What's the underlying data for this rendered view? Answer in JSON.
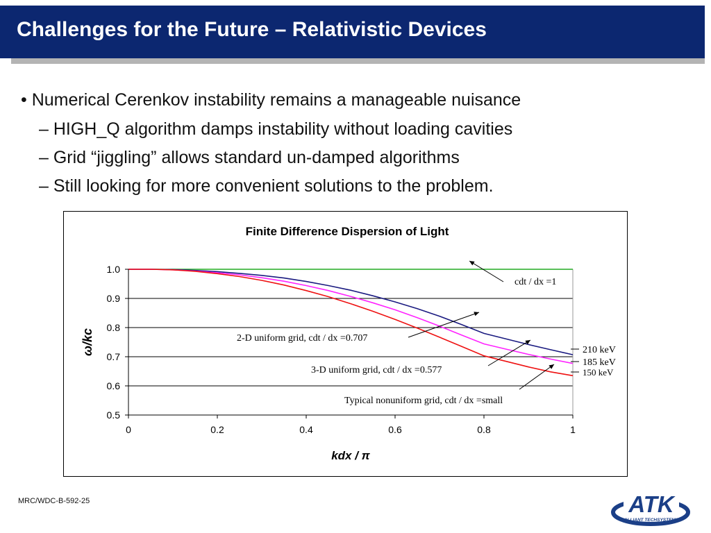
{
  "slide": {
    "title": "Challenges for the Future – Relativistic Devices",
    "bullets": [
      "• Numerical Cerenkov instability remains a manageable nuisance",
      "– HIGH_Q algorithm damps instability without loading cavities",
      "– Grid “jiggling” allows standard un-damped algorithms",
      "– Still looking for more convenient solutions to the problem."
    ],
    "footer_code": "MRC/WDC-B-592-25",
    "logo_text": "ATK",
    "logo_subtext": "ALLIANT TECHSYSTEMS"
  },
  "colors": {
    "title_bar": "#0c2770",
    "logo": "#1b3f87"
  },
  "chart_data": {
    "type": "line",
    "title": "Finite Difference Dispersion of Light",
    "xlabel": "kdx / π",
    "ylabel": "ω/kc",
    "xlim": [
      0,
      1
    ],
    "ylim": [
      0.5,
      1.0
    ],
    "x_ticks": [
      "0",
      "0.2",
      "0.4",
      "0.6",
      "0.8",
      "1"
    ],
    "y_ticks": [
      "0.5",
      "0.6",
      "0.7",
      "0.8",
      "0.9",
      "1.0"
    ],
    "grid": "horizontal",
    "x": [
      0,
      0.05,
      0.1,
      0.15,
      0.2,
      0.25,
      0.3,
      0.35,
      0.4,
      0.45,
      0.5,
      0.55,
      0.6,
      0.65,
      0.7,
      0.75,
      0.8,
      0.85,
      0.9,
      0.95,
      1
    ],
    "series": [
      {
        "color": "#22aa22",
        "values": [
          1,
          1,
          1,
          1,
          1,
          1,
          1,
          1,
          1,
          1,
          1,
          1,
          1,
          1,
          1,
          1,
          1,
          1,
          1,
          1,
          1
        ]
      },
      {
        "color": "#1a1a80",
        "values": [
          1.0,
          1.0,
          0.999,
          0.996,
          0.992,
          0.986,
          0.979,
          0.97,
          0.958,
          0.944,
          0.928,
          0.909,
          0.888,
          0.865,
          0.839,
          0.81,
          0.78,
          0.761,
          0.742,
          0.724,
          0.707
        ]
      },
      {
        "color": "#ff22ff",
        "values": [
          1.0,
          1.0,
          0.998,
          0.994,
          0.988,
          0.981,
          0.971,
          0.959,
          0.944,
          0.927,
          0.907,
          0.885,
          0.861,
          0.834,
          0.805,
          0.774,
          0.744,
          0.726,
          0.708,
          0.692,
          0.677
        ]
      },
      {
        "color": "#ee1111",
        "values": [
          1.0,
          1.0,
          0.998,
          0.993,
          0.985,
          0.975,
          0.962,
          0.946,
          0.927,
          0.906,
          0.882,
          0.856,
          0.828,
          0.798,
          0.767,
          0.735,
          0.703,
          0.684,
          0.665,
          0.648,
          0.635
        ]
      }
    ],
    "annotations": {
      "cdt1": "cdt / dx =1",
      "grid2d": "2-D uniform grid, cdt / dx =0.707",
      "grid3d": "3-D uniform grid, cdt / dx =0.577",
      "nonuniform": "Typical nonuniform grid, cdt / dx =small",
      "kev210": "210 keV",
      "kev185": "185 keV",
      "kev150": "150 keV"
    }
  }
}
